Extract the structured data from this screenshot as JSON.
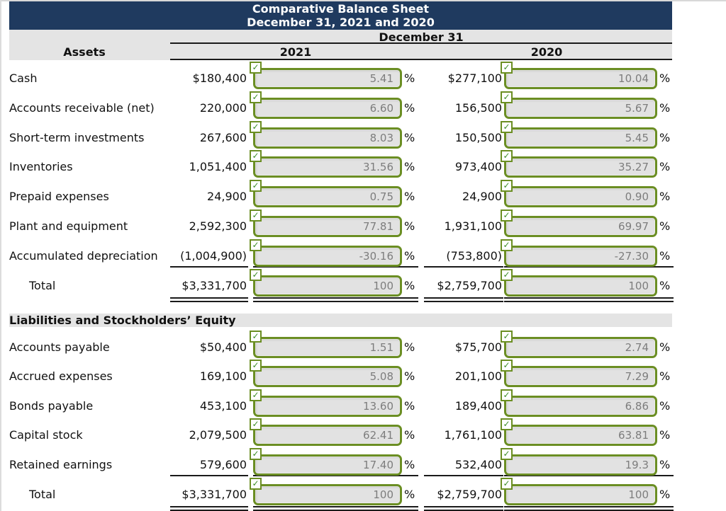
{
  "header": {
    "title_line1": "Comparative Balance Sheet",
    "title_line2": "December 31, 2021 and 2020",
    "date_header": "December 31",
    "assets_header": "Assets",
    "year_2021": "2021",
    "year_2020": "2020"
  },
  "sections": [
    {
      "name": "assets",
      "rows": [
        {
          "label": "Cash",
          "amount_2021": "$180,400",
          "pct_2021": "5.41",
          "amount_2020": "$277,100",
          "pct_2020": "10.04",
          "is_total": false
        },
        {
          "label": "Accounts receivable (net)",
          "amount_2021": "220,000",
          "pct_2021": "6.60",
          "amount_2020": "156,500",
          "pct_2020": "5.67",
          "is_total": false
        },
        {
          "label": "Short-term investments",
          "amount_2021": "267,600",
          "pct_2021": "8.03",
          "amount_2020": "150,500",
          "pct_2020": "5.45",
          "is_total": false
        },
        {
          "label": "Inventories",
          "amount_2021": "1,051,400",
          "pct_2021": "31.56",
          "amount_2020": "973,400",
          "pct_2020": "35.27",
          "is_total": false
        },
        {
          "label": "Prepaid expenses",
          "amount_2021": "24,900",
          "pct_2021": "0.75",
          "amount_2020": "24,900",
          "pct_2020": "0.90",
          "is_total": false
        },
        {
          "label": "Plant and equipment",
          "amount_2021": "2,592,300",
          "pct_2021": "77.81",
          "amount_2020": "1,931,100",
          "pct_2020": "69.97",
          "is_total": false
        },
        {
          "label": "Accumulated depreciation",
          "amount_2021": "(1,004,900)",
          "pct_2021": "-30.16",
          "amount_2020": "(753,800)",
          "pct_2020": "-27.30",
          "is_total": false
        },
        {
          "label": "Total",
          "amount_2021": "$3,331,700",
          "pct_2021": "100",
          "amount_2020": "$2,759,700",
          "pct_2020": "100",
          "is_total": true
        }
      ]
    },
    {
      "name": "liabilities-and-equity",
      "section_header": "Liabilities and Stockholders’ Equity",
      "rows": [
        {
          "label": "Accounts payable",
          "amount_2021": "$50,400",
          "pct_2021": "1.51",
          "amount_2020": "$75,700",
          "pct_2020": "2.74",
          "is_total": false
        },
        {
          "label": "Accrued expenses",
          "amount_2021": "169,100",
          "pct_2021": "5.08",
          "amount_2020": "201,100",
          "pct_2020": "7.29",
          "is_total": false
        },
        {
          "label": "Bonds payable",
          "amount_2021": "453,100",
          "pct_2021": "13.60",
          "amount_2020": "189,400",
          "pct_2020": "6.86",
          "is_total": false
        },
        {
          "label": "Capital stock",
          "amount_2021": "2,079,500",
          "pct_2021": "62.41",
          "amount_2020": "1,761,100",
          "pct_2020": "63.81",
          "is_total": false
        },
        {
          "label": "Retained earnings",
          "amount_2021": "579,600",
          "pct_2021": "17.40",
          "amount_2020": "532,400",
          "pct_2020": "19.3",
          "is_total": false
        },
        {
          "label": "Total",
          "amount_2021": "$3,331,700",
          "pct_2021": "100",
          "amount_2020": "$2,759,700",
          "pct_2020": "100",
          "is_total": true
        }
      ]
    }
  ],
  "ui": {
    "percent_sign": "%",
    "checkmark": "✓"
  },
  "colors": {
    "header_bg": "#1f3a5f",
    "band_bg": "#e4e4e4",
    "input_border": "#6b8e23",
    "input_bg": "#e2e2e2",
    "input_text": "#7d7d7d",
    "check_color": "#3e8e28",
    "line": "#1a1a1a"
  }
}
